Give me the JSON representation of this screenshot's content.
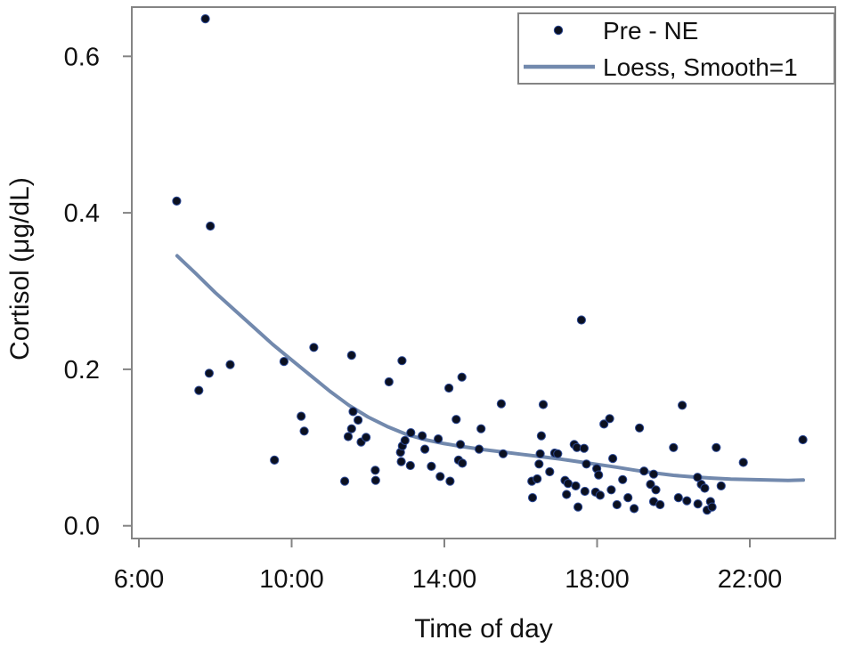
{
  "chart_data": {
    "type": "scatter",
    "title": "",
    "xlabel": "Time of day",
    "ylabel": "Cortisol (μg/dL)",
    "x_ticks": [
      {
        "hour": 6,
        "label": "6:00"
      },
      {
        "hour": 10,
        "label": "10:00"
      },
      {
        "hour": 14,
        "label": "14:00"
      },
      {
        "hour": 18,
        "label": "18:00"
      },
      {
        "hour": 22,
        "label": "22:00"
      }
    ],
    "y_ticks": [
      {
        "value": 0.0,
        "label": "0.0"
      },
      {
        "value": 0.2,
        "label": "0.2"
      },
      {
        "value": 0.4,
        "label": "0.4"
      },
      {
        "value": 0.6,
        "label": "0.6"
      }
    ],
    "x_range_hours": [
      5.8,
      24.25
    ],
    "ylim": [
      -0.016,
      0.663
    ],
    "grid": false,
    "legend_position": "top-right-inside",
    "legend": {
      "items": [
        {
          "label": "Pre - NE",
          "swatch": "dot"
        },
        {
          "label": "Loess, Smooth=1",
          "swatch": "line"
        }
      ]
    },
    "series": [
      {
        "name": "Pre - NE",
        "type": "scatter",
        "marker": "filled-circle",
        "marker_color": "#0b1020",
        "marker_edge_color": "#2d4a96",
        "points_time_value": [
          [
            6.99,
            0.415
          ],
          [
            7.74,
            0.648
          ],
          [
            7.87,
            0.383
          ],
          [
            7.57,
            0.173
          ],
          [
            7.84,
            0.195
          ],
          [
            8.39,
            0.206
          ],
          [
            9.55,
            0.084
          ],
          [
            9.8,
            0.21
          ],
          [
            10.25,
            0.14
          ],
          [
            10.33,
            0.121
          ],
          [
            10.58,
            0.228
          ],
          [
            11.39,
            0.057
          ],
          [
            11.48,
            0.114
          ],
          [
            11.57,
            0.218
          ],
          [
            11.57,
            0.124
          ],
          [
            11.61,
            0.146
          ],
          [
            11.74,
            0.135
          ],
          [
            11.82,
            0.107
          ],
          [
            11.95,
            0.113
          ],
          [
            12.19,
            0.071
          ],
          [
            12.2,
            0.058
          ],
          [
            12.55,
            0.184
          ],
          [
            12.85,
            0.094
          ],
          [
            12.87,
            0.082
          ],
          [
            12.89,
            0.211
          ],
          [
            12.9,
            0.102
          ],
          [
            12.97,
            0.109
          ],
          [
            13.11,
            0.077
          ],
          [
            13.12,
            0.119
          ],
          [
            13.42,
            0.115
          ],
          [
            13.49,
            0.098
          ],
          [
            13.66,
            0.076
          ],
          [
            13.84,
            0.111
          ],
          [
            13.89,
            0.063
          ],
          [
            14.12,
            0.176
          ],
          [
            14.15,
            0.057
          ],
          [
            14.31,
            0.136
          ],
          [
            14.37,
            0.084
          ],
          [
            14.47,
            0.08
          ],
          [
            14.42,
            0.104
          ],
          [
            14.46,
            0.19
          ],
          [
            14.91,
            0.098
          ],
          [
            14.96,
            0.124
          ],
          [
            15.49,
            0.156
          ],
          [
            15.54,
            0.092
          ],
          [
            16.29,
            0.057
          ],
          [
            16.31,
            0.036
          ],
          [
            16.43,
            0.06
          ],
          [
            16.48,
            0.079
          ],
          [
            16.51,
            0.092
          ],
          [
            16.54,
            0.115
          ],
          [
            16.59,
            0.155
          ],
          [
            16.76,
            0.069
          ],
          [
            16.89,
            0.093
          ],
          [
            16.97,
            0.092
          ],
          [
            17.16,
            0.058
          ],
          [
            17.24,
            0.054
          ],
          [
            17.2,
            0.04
          ],
          [
            17.4,
            0.104
          ],
          [
            17.44,
            0.051
          ],
          [
            17.47,
            0.1
          ],
          [
            17.5,
            0.024
          ],
          [
            17.59,
            0.263
          ],
          [
            17.66,
            0.099
          ],
          [
            17.68,
            0.044
          ],
          [
            17.72,
            0.079
          ],
          [
            17.96,
            0.043
          ],
          [
            17.99,
            0.073
          ],
          [
            18.04,
            0.065
          ],
          [
            18.08,
            0.039
          ],
          [
            18.18,
            0.13
          ],
          [
            18.33,
            0.137
          ],
          [
            18.37,
            0.046
          ],
          [
            18.41,
            0.086
          ],
          [
            18.52,
            0.027
          ],
          [
            18.67,
            0.059
          ],
          [
            18.81,
            0.036
          ],
          [
            18.97,
            0.022
          ],
          [
            19.11,
            0.125
          ],
          [
            19.23,
            0.07
          ],
          [
            19.4,
            0.053
          ],
          [
            19.48,
            0.066
          ],
          [
            19.48,
            0.031
          ],
          [
            19.54,
            0.046
          ],
          [
            19.65,
            0.027
          ],
          [
            20,
            0.1
          ],
          [
            20.13,
            0.036
          ],
          [
            20.23,
            0.154
          ],
          [
            20.35,
            0.032
          ],
          [
            20.63,
            0.062
          ],
          [
            20.64,
            0.028
          ],
          [
            20.73,
            0.053
          ],
          [
            20.82,
            0.048
          ],
          [
            20.88,
            0.02
          ],
          [
            20.97,
            0.031
          ],
          [
            21.01,
            0.024
          ],
          [
            21.12,
            0.1
          ],
          [
            21.25,
            0.051
          ],
          [
            21.83,
            0.081
          ],
          [
            23.39,
            0.11
          ]
        ]
      },
      {
        "name": "Loess, Smooth=1",
        "type": "line",
        "color": "#7289ad",
        "points_time_value": [
          [
            7.0,
            0.345
          ],
          [
            7.5,
            0.322
          ],
          [
            8.0,
            0.298
          ],
          [
            8.5,
            0.276
          ],
          [
            9.0,
            0.254
          ],
          [
            9.5,
            0.232
          ],
          [
            10.0,
            0.212
          ],
          [
            10.5,
            0.192
          ],
          [
            11.0,
            0.172
          ],
          [
            11.5,
            0.154
          ],
          [
            12.0,
            0.139
          ],
          [
            12.5,
            0.127
          ],
          [
            13.0,
            0.117
          ],
          [
            13.5,
            0.11
          ],
          [
            14.0,
            0.105
          ],
          [
            14.5,
            0.101
          ],
          [
            15.0,
            0.0975
          ],
          [
            15.5,
            0.0945
          ],
          [
            16.0,
            0.0915
          ],
          [
            16.5,
            0.0885
          ],
          [
            17.0,
            0.0855
          ],
          [
            17.5,
            0.082
          ],
          [
            18.0,
            0.0785
          ],
          [
            18.5,
            0.075
          ],
          [
            19.0,
            0.071
          ],
          [
            19.5,
            0.0675
          ],
          [
            20.0,
            0.0645
          ],
          [
            20.5,
            0.0625
          ],
          [
            21.0,
            0.061
          ],
          [
            21.5,
            0.0597
          ],
          [
            22.0,
            0.059
          ],
          [
            22.5,
            0.0585
          ],
          [
            23.0,
            0.058
          ],
          [
            23.4,
            0.0585
          ]
        ]
      }
    ]
  },
  "colors": {
    "frame": "#848484",
    "tick": "#848484",
    "text": "#111111",
    "loess_line": "#7289ad",
    "marker_fill": "#0b1020",
    "marker_edge": "#2d4a96",
    "background": "#ffffff",
    "legend_border": "#848484",
    "legend_background": "#ffffff"
  }
}
